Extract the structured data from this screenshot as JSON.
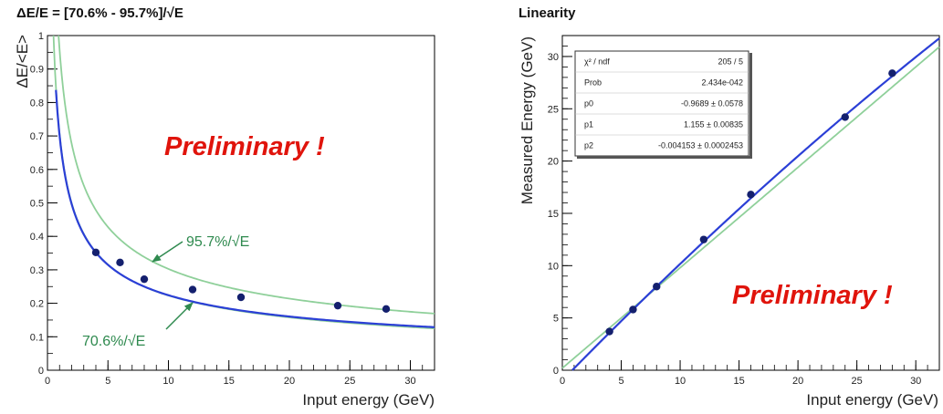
{
  "chart_data": [
    {
      "type": "scatter",
      "title": "ΔE/E = [70.6% - 95.7%]/√E",
      "xlabel": "Input energy (GeV)",
      "ylabel": "ΔE/<E>",
      "xlim": [
        0,
        32
      ],
      "ylim": [
        0,
        1
      ],
      "x_ticks": [
        "0",
        "5",
        "10",
        "15",
        "20",
        "25",
        "30"
      ],
      "y_ticks": [
        "0",
        "0.1",
        "0.2",
        "0.3",
        "0.4",
        "0.5",
        "0.6",
        "0.7",
        "0.8",
        "0.9",
        "1"
      ],
      "series": [
        {
          "x": [
            4,
            6,
            8,
            12,
            16,
            24,
            28
          ],
          "y": [
            0.352,
            0.322,
            0.272,
            0.241,
            0.218,
            0.193,
            0.183
          ]
        }
      ],
      "fit_curve": {
        "a": 0.035,
        "b": 0.7,
        "c": 0.005
      },
      "reference_curves": [
        {
          "label": "95.7%/√E",
          "coefficient": 0.957
        },
        {
          "label": "70.6%/√E",
          "coefficient": 0.706
        }
      ],
      "annotation": "Preliminary !",
      "grid": false
    },
    {
      "type": "scatter",
      "title": "Linearity",
      "xlabel": "Input energy (GeV)",
      "ylabel": "Measured Energy (GeV)",
      "xlim": [
        0,
        32
      ],
      "ylim": [
        0,
        32
      ],
      "x_ticks": [
        "0",
        "5",
        "10",
        "15",
        "20",
        "25",
        "30"
      ],
      "y_ticks": [
        "0",
        "5",
        "10",
        "15",
        "20",
        "25",
        "30"
      ],
      "series": [
        {
          "x": [
            4,
            6,
            8,
            12,
            16,
            24,
            28
          ],
          "y": [
            3.7,
            5.8,
            8.0,
            12.5,
            16.8,
            24.2,
            28.4
          ]
        }
      ],
      "fit": {
        "p0": -0.9689,
        "p1": 1.155,
        "p2": -0.004153
      },
      "stats": [
        {
          "name": "χ² / ndf",
          "value": "205 / 5"
        },
        {
          "name": "Prob",
          "value": "2.434e-042"
        },
        {
          "name": "p0",
          "value": "-0.9689 ± 0.0578"
        },
        {
          "name": "p1",
          "value": "1.155 ± 0.00835"
        },
        {
          "name": "p2",
          "value": "-0.004153 ± 0.0002453"
        }
      ],
      "annotation": "Preliminary !",
      "grid": false
    }
  ],
  "colors": {
    "points": "#14206e",
    "fit": "#2b3fd6",
    "reference": "#8fd09a",
    "annotation_text": "#2f8a4f",
    "preliminary": "#e0140c"
  }
}
